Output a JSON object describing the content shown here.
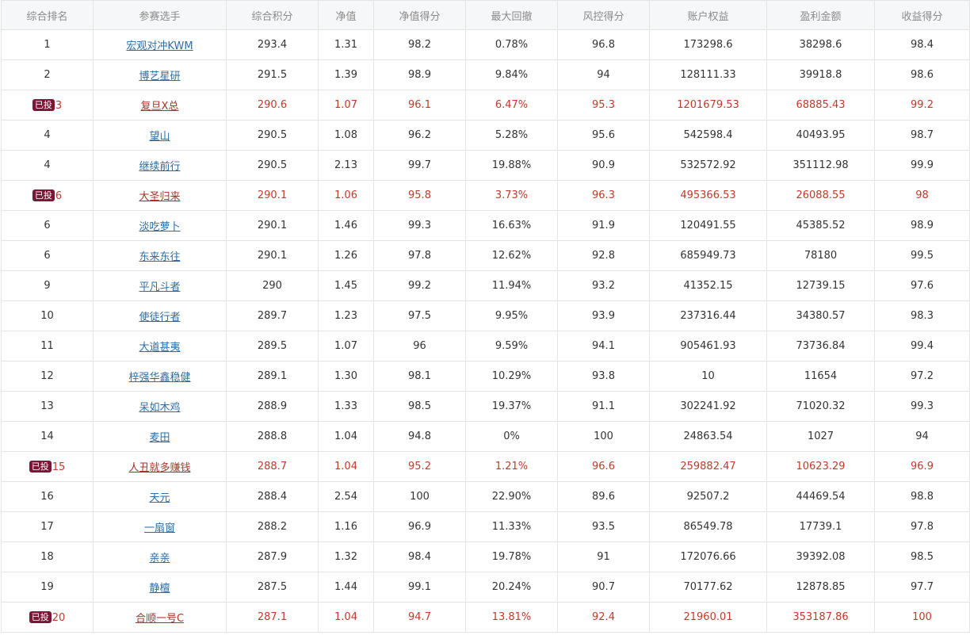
{
  "columns": [
    "综合排名",
    "参赛选手",
    "综合积分",
    "净值",
    "净值得分",
    "最大回撤",
    "风控得分",
    "账户权益",
    "盈利金额",
    "收益得分"
  ],
  "badge_label": "已投",
  "colors": {
    "invested_text": "#c0392b",
    "badge_bg": "#7b1636",
    "link": "#2e6da4"
  },
  "rows": [
    {
      "rank": "1",
      "invested": false,
      "player": "宏观对冲KWM",
      "score": "293.4",
      "nav": "1.31",
      "nav_score": "98.2",
      "max_drawdown": "0.78%",
      "risk_score": "96.8",
      "equity": "173298.6",
      "profit": "38298.6",
      "return_score": "98.4"
    },
    {
      "rank": "2",
      "invested": false,
      "player": "博艺星研",
      "score": "291.5",
      "nav": "1.39",
      "nav_score": "98.9",
      "max_drawdown": "9.84%",
      "risk_score": "94",
      "equity": "128111.33",
      "profit": "39918.8",
      "return_score": "98.6"
    },
    {
      "rank": "3",
      "invested": true,
      "player": "复旦X总",
      "score": "290.6",
      "nav": "1.07",
      "nav_score": "96.1",
      "max_drawdown": "6.47%",
      "risk_score": "95.3",
      "equity": "1201679.53",
      "profit": "68885.43",
      "return_score": "99.2"
    },
    {
      "rank": "4",
      "invested": false,
      "player": "望山",
      "score": "290.5",
      "nav": "1.08",
      "nav_score": "96.2",
      "max_drawdown": "5.28%",
      "risk_score": "95.6",
      "equity": "542598.4",
      "profit": "40493.95",
      "return_score": "98.7"
    },
    {
      "rank": "4",
      "invested": false,
      "player": "继续前行",
      "score": "290.5",
      "nav": "2.13",
      "nav_score": "99.7",
      "max_drawdown": "19.88%",
      "risk_score": "90.9",
      "equity": "532572.92",
      "profit": "351112.98",
      "return_score": "99.9"
    },
    {
      "rank": "6",
      "invested": true,
      "player": "大圣归来",
      "score": "290.1",
      "nav": "1.06",
      "nav_score": "95.8",
      "max_drawdown": "3.73%",
      "risk_score": "96.3",
      "equity": "495366.53",
      "profit": "26088.55",
      "return_score": "98"
    },
    {
      "rank": "6",
      "invested": false,
      "player": "淡吃萝卜",
      "score": "290.1",
      "nav": "1.46",
      "nav_score": "99.3",
      "max_drawdown": "16.63%",
      "risk_score": "91.9",
      "equity": "120491.55",
      "profit": "45385.52",
      "return_score": "98.9"
    },
    {
      "rank": "6",
      "invested": false,
      "player": "东来东往",
      "score": "290.1",
      "nav": "1.26",
      "nav_score": "97.8",
      "max_drawdown": "12.62%",
      "risk_score": "92.8",
      "equity": "685949.73",
      "profit": "78180",
      "return_score": "99.5"
    },
    {
      "rank": "9",
      "invested": false,
      "player": "平凡斗者",
      "score": "290",
      "nav": "1.45",
      "nav_score": "99.2",
      "max_drawdown": "11.94%",
      "risk_score": "93.2",
      "equity": "41352.15",
      "profit": "12739.15",
      "return_score": "97.6"
    },
    {
      "rank": "10",
      "invested": false,
      "player": "使徒行者",
      "score": "289.7",
      "nav": "1.23",
      "nav_score": "97.5",
      "max_drawdown": "9.95%",
      "risk_score": "93.9",
      "equity": "237316.44",
      "profit": "34380.57",
      "return_score": "98.3"
    },
    {
      "rank": "11",
      "invested": false,
      "player": "大道甚夷",
      "score": "289.5",
      "nav": "1.07",
      "nav_score": "96",
      "max_drawdown": "9.59%",
      "risk_score": "94.1",
      "equity": "905461.93",
      "profit": "73736.84",
      "return_score": "99.4"
    },
    {
      "rank": "12",
      "invested": false,
      "player": "梓强华鑫稳健",
      "score": "289.1",
      "nav": "1.30",
      "nav_score": "98.1",
      "max_drawdown": "10.29%",
      "risk_score": "93.8",
      "equity": "10",
      "profit": "11654",
      "return_score": "97.2"
    },
    {
      "rank": "13",
      "invested": false,
      "player": "呆如木鸡",
      "score": "288.9",
      "nav": "1.33",
      "nav_score": "98.5",
      "max_drawdown": "19.37%",
      "risk_score": "91.1",
      "equity": "302241.92",
      "profit": "71020.32",
      "return_score": "99.3"
    },
    {
      "rank": "14",
      "invested": false,
      "player": "麦田",
      "score": "288.8",
      "nav": "1.04",
      "nav_score": "94.8",
      "max_drawdown": "0%",
      "risk_score": "100",
      "equity": "24863.54",
      "profit": "1027",
      "return_score": "94"
    },
    {
      "rank": "15",
      "invested": true,
      "player": "人丑就多赚钱",
      "score": "288.7",
      "nav": "1.04",
      "nav_score": "95.2",
      "max_drawdown": "1.21%",
      "risk_score": "96.6",
      "equity": "259882.47",
      "profit": "10623.29",
      "return_score": "96.9"
    },
    {
      "rank": "16",
      "invested": false,
      "player": "天元",
      "score": "288.4",
      "nav": "2.54",
      "nav_score": "100",
      "max_drawdown": "22.90%",
      "risk_score": "89.6",
      "equity": "92507.2",
      "profit": "44469.54",
      "return_score": "98.8"
    },
    {
      "rank": "17",
      "invested": false,
      "player": "一扇窗",
      "score": "288.2",
      "nav": "1.16",
      "nav_score": "96.9",
      "max_drawdown": "11.33%",
      "risk_score": "93.5",
      "equity": "86549.78",
      "profit": "17739.1",
      "return_score": "97.8"
    },
    {
      "rank": "18",
      "invested": false,
      "player": "亲亲",
      "score": "287.9",
      "nav": "1.32",
      "nav_score": "98.4",
      "max_drawdown": "19.78%",
      "risk_score": "91",
      "equity": "172076.66",
      "profit": "39392.08",
      "return_score": "98.5"
    },
    {
      "rank": "19",
      "invested": false,
      "player": "静檀",
      "score": "287.5",
      "nav": "1.44",
      "nav_score": "99.1",
      "max_drawdown": "20.24%",
      "risk_score": "90.7",
      "equity": "70177.62",
      "profit": "12878.85",
      "return_score": "97.7"
    },
    {
      "rank": "20",
      "invested": true,
      "player": "合顺一号C",
      "score": "287.1",
      "nav": "1.04",
      "nav_score": "94.7",
      "max_drawdown": "13.81%",
      "risk_score": "92.4",
      "equity": "21960.01",
      "profit": "353187.86",
      "return_score": "100"
    }
  ]
}
